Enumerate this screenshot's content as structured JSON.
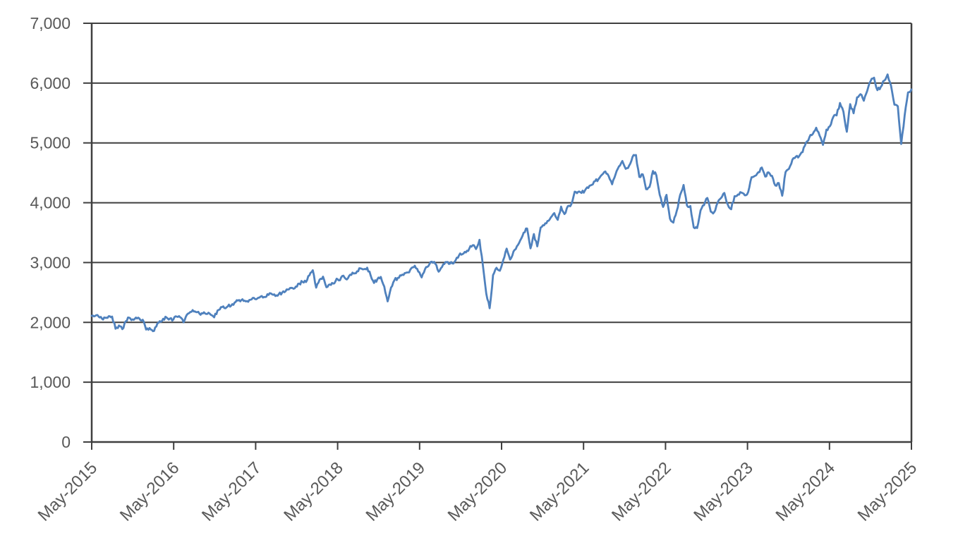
{
  "chart_data": {
    "type": "line",
    "title": "",
    "xlabel": "",
    "ylabel": "",
    "x_tick_labels": [
      "May-2015",
      "May-2016",
      "May-2017",
      "May-2018",
      "May-2019",
      "May-2020",
      "May-2021",
      "May-2022",
      "May-2023",
      "May-2024",
      "May-2025"
    ],
    "y_tick_labels": [
      "0",
      "1,000",
      "2,000",
      "3,000",
      "4,000",
      "5,000",
      "6,000",
      "7,000"
    ],
    "ylim": [
      0,
      7000
    ],
    "y_step": 1000,
    "grid": "horizontal",
    "legend": "none",
    "series": [
      {
        "points_per_month": 2,
        "x_start": "May-2015",
        "x_end": "May-2025",
        "values": [
          2110,
          2107,
          2100,
          2063,
          2077,
          2104,
          2096,
          1894,
          1948,
          1887,
          2018,
          2079,
          2050,
          2080,
          2065,
          2044,
          1880,
          1906,
          1853,
          1932,
          2020,
          2060,
          2081,
          2065,
          2047,
          2097,
          2085,
          2001,
          2130,
          2174,
          2183,
          2171,
          2127,
          2168,
          2141,
          2126,
          2085,
          2199,
          2255,
          2239,
          2268,
          2279,
          2330,
          2364,
          2373,
          2363,
          2344,
          2384,
          2391,
          2412,
          2440,
          2423,
          2460,
          2470,
          2441,
          2472,
          2498,
          2519,
          2553,
          2575,
          2599,
          2648,
          2676,
          2674,
          2786,
          2872,
          2581,
          2714,
          2765,
          2588,
          2634,
          2648,
          2730,
          2705,
          2780,
          2718,
          2798,
          2816,
          2853,
          2902,
          2888,
          2914,
          2785,
          2658,
          2723,
          2760,
          2600,
          2351,
          2582,
          2704,
          2745,
          2784,
          2822,
          2834,
          2907,
          2946,
          2850,
          2752,
          2890,
          2942,
          3014,
          2980,
          2847,
          2926,
          3007,
          2977,
          2986,
          3038,
          3120,
          3141,
          3169,
          3231,
          3289,
          3226,
          3380,
          2954,
          2481,
          2237,
          2790,
          2912,
          2864,
          3044,
          3232,
          3050,
          3185,
          3271,
          3373,
          3500,
          3570,
          3237,
          3477,
          3270,
          3585,
          3622,
          3695,
          3756,
          3826,
          3714,
          3935,
          3811,
          3943,
          3973,
          4185,
          4181,
          4163,
          4204,
          4247,
          4298,
          4360,
          4395,
          4468,
          4523,
          4443,
          4308,
          4471,
          4605,
          4697,
          4567,
          4620,
          4766,
          4797,
          4431,
          4475,
          4226,
          4262,
          4530,
          4459,
          4132,
          3930,
          4132,
          3735,
          3667,
          3863,
          4130,
          4297,
          3955,
          3946,
          3586,
          3577,
          3872,
          3958,
          4080,
          3852,
          3840,
          3999,
          4077,
          4164,
          3970,
          3891,
          4109,
          4138,
          4169,
          4124,
          4180,
          4426,
          4450,
          4510,
          4589,
          4437,
          4508,
          4450,
          4288,
          4328,
          4117,
          4514,
          4568,
          4719,
          4770,
          4780,
          4846,
          5005,
          5096,
          5150,
          5254,
          5123,
          4967,
          5222,
          5277,
          5431,
          5460,
          5667,
          5522,
          5186,
          5648,
          5495,
          5762,
          5815,
          5705,
          5870,
          6032,
          6090,
          5882,
          5937,
          6041,
          6144,
          5955,
          5639,
          5612,
          4983,
          5461,
          5844,
          5893
        ]
      }
    ]
  },
  "colors": {
    "line": "#4f81bd",
    "grid": "#3f3f3f",
    "axis": "#3f3f3f",
    "label": "#595959",
    "background": "#ffffff"
  }
}
